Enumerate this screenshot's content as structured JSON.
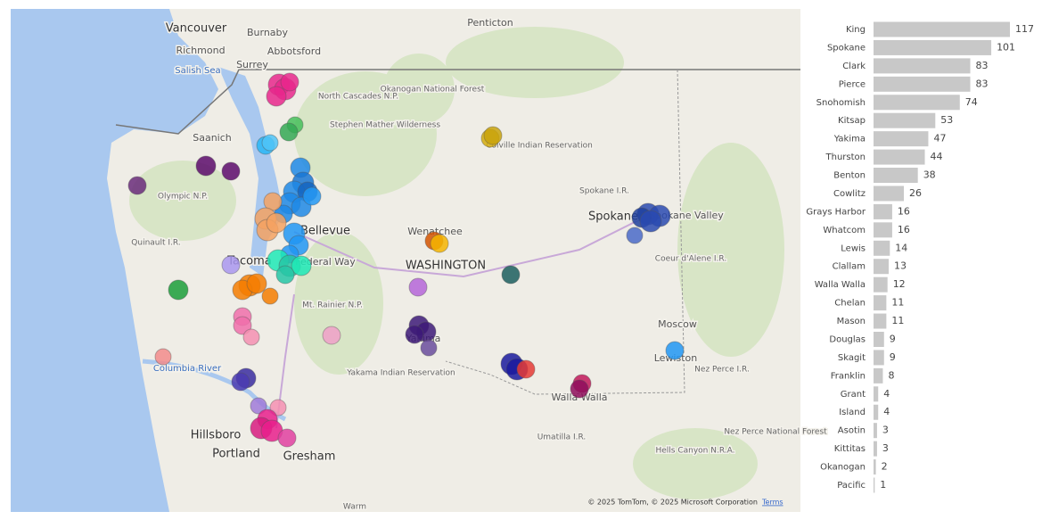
{
  "map": {
    "labels": [
      "Vancouver",
      "Burnaby",
      "Richmond",
      "Abbotsford",
      "Surrey",
      "Salish Sea",
      "Penticton",
      "North Cascades N.P.",
      "Okanogan National Forest",
      "Stephen Mather Wilderness",
      "Saanich",
      "Colville Indian Reservation",
      "Olympic N.P.",
      "Spokane I.R.",
      "Spokane",
      "Spokane Valley",
      "Bellevue",
      "Wenatchee",
      "Quinault I.R.",
      "Tacoma",
      "Federal Way",
      "WASHINGTON",
      "Coeur d'Alene I.R.",
      "Mt. Rainier N.P.",
      "Moscow",
      "Lewiston",
      "Yakima",
      "Columbia River",
      "Yakama Indian Reservation",
      "Walla Walla",
      "Nez Perce I.R.",
      "Nez Perce National Forest",
      "Hells Canyon N.R.A.",
      "Umatilla I.R.",
      "Hillsboro",
      "Portland",
      "Gresham",
      "Warm"
    ],
    "attribution": "© 2025 TomTom, © 2025 Microsoft Corporation",
    "terms": "Terms"
  },
  "chart_data": {
    "type": "hbar",
    "categories": [
      "King",
      "Spokane",
      "Clark",
      "Pierce",
      "Snohomish",
      "Kitsap",
      "Yakima",
      "Thurston",
      "Benton",
      "Cowlitz",
      "Grays Harbor",
      "Whatcom",
      "Lewis",
      "Clallam",
      "Walla Walla",
      "Chelan",
      "Mason",
      "Douglas",
      "Skagit",
      "Franklin",
      "Grant",
      "Island",
      "Asotin",
      "Kittitas",
      "Okanogan",
      "Pacific"
    ],
    "values": [
      117,
      101,
      83,
      83,
      74,
      53,
      47,
      44,
      38,
      26,
      16,
      16,
      14,
      13,
      12,
      11,
      11,
      9,
      9,
      8,
      4,
      4,
      3,
      3,
      2,
      1
    ],
    "color": "#c8c8c8"
  }
}
